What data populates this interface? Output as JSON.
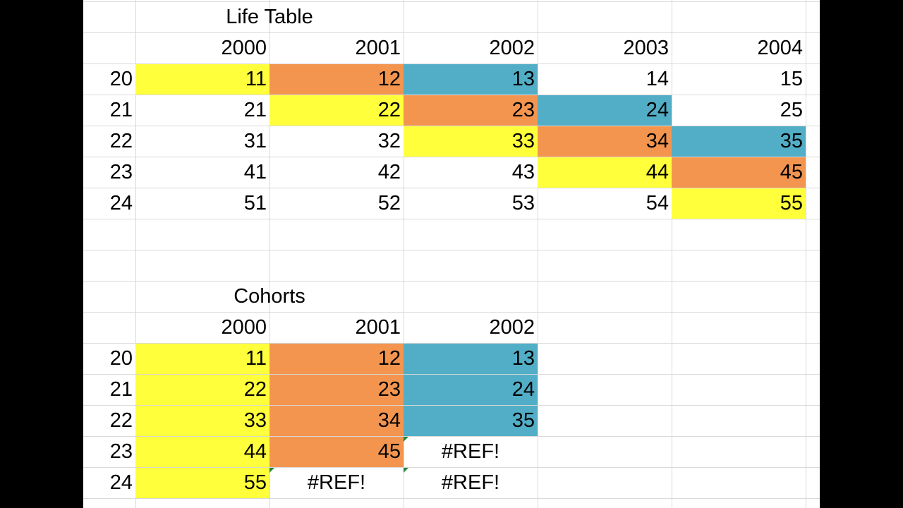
{
  "colors": {
    "yellow": "#ffff3b",
    "orange": "#f3954f",
    "blue": "#52aec6",
    "gridline": "#d9d9d9",
    "error_flag": "#1f8a3a"
  },
  "life_table": {
    "title": "Life Table",
    "years": [
      "2000",
      "2001",
      "2002",
      "2003",
      "2004"
    ],
    "ages": [
      "20",
      "21",
      "22",
      "23",
      "24"
    ],
    "rows": [
      [
        "11",
        "12",
        "13",
        "14",
        "15"
      ],
      [
        "21",
        "22",
        "23",
        "24",
        "25"
      ],
      [
        "31",
        "32",
        "33",
        "34",
        "35"
      ],
      [
        "41",
        "42",
        "43",
        "44",
        "45"
      ],
      [
        "51",
        "52",
        "53",
        "54",
        "55"
      ]
    ],
    "fills": [
      [
        "yellow",
        "orange",
        "blue",
        null,
        null
      ],
      [
        null,
        "yellow",
        "orange",
        "blue",
        null
      ],
      [
        null,
        null,
        "yellow",
        "orange",
        "blue"
      ],
      [
        null,
        null,
        null,
        "yellow",
        "orange"
      ],
      [
        null,
        null,
        null,
        null,
        "yellow"
      ]
    ]
  },
  "cohorts": {
    "title": "Cohorts",
    "years": [
      "2000",
      "2001",
      "2002"
    ],
    "ages": [
      "20",
      "21",
      "22",
      "23",
      "24"
    ],
    "rows": [
      [
        "11",
        "12",
        "13"
      ],
      [
        "22",
        "23",
        "24"
      ],
      [
        "33",
        "34",
        "35"
      ],
      [
        "44",
        "45",
        "#REF!"
      ],
      [
        "55",
        "#REF!",
        "#REF!"
      ]
    ],
    "fills": [
      [
        "yellow",
        "orange",
        "blue"
      ],
      [
        "yellow",
        "orange",
        "blue"
      ],
      [
        "yellow",
        "orange",
        "blue"
      ],
      [
        "yellow",
        "orange",
        null
      ],
      [
        "yellow",
        null,
        null
      ]
    ]
  }
}
